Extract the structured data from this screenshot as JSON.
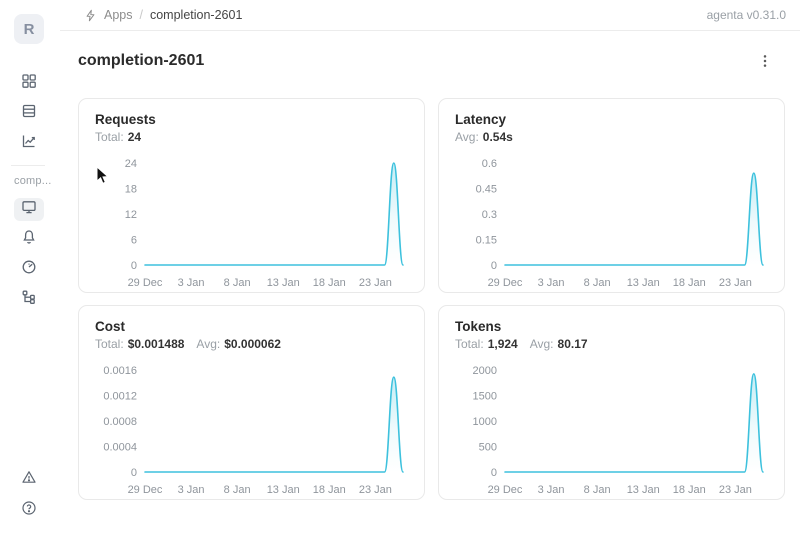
{
  "header": {
    "breadcrumb": {
      "app_icon": "lightning-icon",
      "section": "Apps",
      "separator": "/",
      "current": "completion-2601"
    },
    "version": "agenta v0.31.0"
  },
  "sidebar": {
    "avatar_letter": "R",
    "workspace_label": "comp...",
    "top_icons": [
      "grid-icon",
      "table-icon",
      "trend-chart-icon"
    ],
    "app_icons": [
      "monitor-icon",
      "bell-icon",
      "gauge-icon",
      "tree-icon"
    ],
    "bottom_icons": [
      "warning-triangle-icon",
      "help-circle-icon"
    ],
    "active_icon": "monitor-icon"
  },
  "page": {
    "title": "completion-2601",
    "menu_icon": "kebab-menu-icon"
  },
  "theme": {
    "accent": "#3dc1dd",
    "tick_color": "#8f959c",
    "card_border": "#e9e9e9"
  },
  "cards": [
    {
      "id": "requests",
      "title": "Requests",
      "stats": [
        {
          "label": "Total:",
          "value": "24"
        }
      ]
    },
    {
      "id": "latency",
      "title": "Latency",
      "stats": [
        {
          "label": "Avg:",
          "value": "0.54s"
        }
      ]
    },
    {
      "id": "cost",
      "title": "Cost",
      "stats": [
        {
          "label": "Total:",
          "value": "$0.001488"
        },
        {
          "label": "Avg:",
          "value": "$0.000062"
        }
      ]
    },
    {
      "id": "tokens",
      "title": "Tokens",
      "stats": [
        {
          "label": "Total:",
          "value": "1,924"
        },
        {
          "label": "Avg:",
          "value": "80.17"
        }
      ]
    }
  ],
  "chart_data": [
    {
      "type": "area",
      "title": "Requests",
      "line_color": "#3dc1dd",
      "x_tick_labels": [
        "29 Dec",
        "3 Jan",
        "8 Jan",
        "13 Jan",
        "18 Jan",
        "23 Jan"
      ],
      "x_tick_positions": [
        0,
        5,
        10,
        15,
        20,
        25
      ],
      "x_range": [
        0,
        28
      ],
      "values": [
        0,
        0,
        0,
        0,
        0,
        0,
        0,
        0,
        0,
        0,
        0,
        0,
        0,
        0,
        0,
        0,
        0,
        0,
        0,
        0,
        0,
        0,
        0,
        0,
        0,
        0,
        0,
        24,
        0
      ],
      "y_ticks": [
        0,
        6,
        12,
        18,
        24
      ],
      "y_tick_labels": [
        "0",
        "6",
        "12",
        "18",
        "24"
      ],
      "ylim": [
        0,
        24
      ],
      "grid": false,
      "legend": false
    },
    {
      "type": "area",
      "title": "Latency",
      "line_color": "#3dc1dd",
      "x_tick_labels": [
        "29 Dec",
        "3 Jan",
        "8 Jan",
        "13 Jan",
        "18 Jan",
        "23 Jan"
      ],
      "x_tick_positions": [
        0,
        5,
        10,
        15,
        20,
        25
      ],
      "x_range": [
        0,
        28
      ],
      "values": [
        0,
        0,
        0,
        0,
        0,
        0,
        0,
        0,
        0,
        0,
        0,
        0,
        0,
        0,
        0,
        0,
        0,
        0,
        0,
        0,
        0,
        0,
        0,
        0,
        0,
        0,
        0,
        0.54,
        0
      ],
      "y_ticks": [
        0,
        0.15,
        0.3,
        0.45,
        0.6
      ],
      "y_tick_labels": [
        "0",
        "0.15",
        "0.3",
        "0.45",
        "0.6"
      ],
      "ylim": [
        0,
        0.6
      ],
      "grid": false,
      "legend": false
    },
    {
      "type": "area",
      "title": "Cost",
      "line_color": "#3dc1dd",
      "x_tick_labels": [
        "29 Dec",
        "3 Jan",
        "8 Jan",
        "13 Jan",
        "18 Jan",
        "23 Jan"
      ],
      "x_tick_positions": [
        0,
        5,
        10,
        15,
        20,
        25
      ],
      "x_range": [
        0,
        28
      ],
      "values": [
        0,
        0,
        0,
        0,
        0,
        0,
        0,
        0,
        0,
        0,
        0,
        0,
        0,
        0,
        0,
        0,
        0,
        0,
        0,
        0,
        0,
        0,
        0,
        0,
        0,
        0,
        0,
        0.001488,
        0
      ],
      "y_ticks": [
        0,
        0.0004,
        0.0008,
        0.0012,
        0.0016
      ],
      "y_tick_labels": [
        "0",
        "0.0004",
        "0.0008",
        "0.0012",
        "0.0016"
      ],
      "ylim": [
        0,
        0.0016
      ],
      "grid": false,
      "legend": false
    },
    {
      "type": "area",
      "title": "Tokens",
      "line_color": "#3dc1dd",
      "x_tick_labels": [
        "29 Dec",
        "3 Jan",
        "8 Jan",
        "13 Jan",
        "18 Jan",
        "23 Jan"
      ],
      "x_tick_positions": [
        0,
        5,
        10,
        15,
        20,
        25
      ],
      "x_range": [
        0,
        28
      ],
      "values": [
        0,
        0,
        0,
        0,
        0,
        0,
        0,
        0,
        0,
        0,
        0,
        0,
        0,
        0,
        0,
        0,
        0,
        0,
        0,
        0,
        0,
        0,
        0,
        0,
        0,
        0,
        0,
        1924,
        0
      ],
      "y_ticks": [
        0,
        500,
        1000,
        1500,
        2000
      ],
      "y_tick_labels": [
        "0",
        "500",
        "1000",
        "1500",
        "2000"
      ],
      "ylim": [
        0,
        2000
      ],
      "grid": false,
      "legend": false
    }
  ]
}
